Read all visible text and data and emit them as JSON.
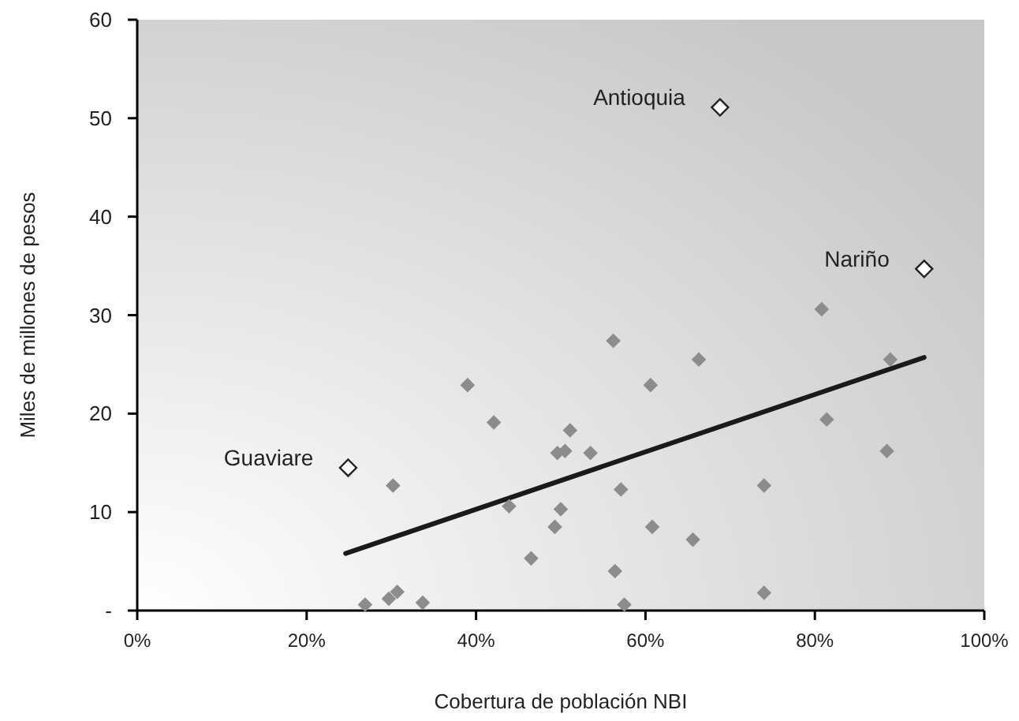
{
  "chart_data": {
    "type": "scatter",
    "xlabel": "Cobertura de población NBI",
    "ylabel": "Miles de millones de pesos",
    "xlim": [
      0,
      100
    ],
    "xticks": [
      {
        "value": 0,
        "label": "0%"
      },
      {
        "value": 20,
        "label": "20%"
      },
      {
        "value": 40,
        "label": "40%"
      },
      {
        "value": 60,
        "label": "60%"
      },
      {
        "value": 80,
        "label": "80%"
      },
      {
        "value": 100,
        "label": "100%"
      }
    ],
    "ylim": [
      0,
      60
    ],
    "yticks": [
      {
        "value": 0,
        "label": "-"
      },
      10,
      20,
      30,
      40,
      50,
      60
    ],
    "series": [
      {
        "color": "#8c8c8c",
        "marker": "diamond",
        "x": [
          39.0,
          42.1,
          30.2,
          43.9,
          46.5,
          26.9,
          29.7,
          30.7,
          33.7,
          56.2,
          66.3,
          60.6,
          51.1,
          49.6,
          50.5,
          53.5,
          57.1,
          50.0,
          49.3,
          60.8,
          65.6,
          56.4,
          57.5,
          74.0,
          74.0,
          80.8,
          81.4,
          88.9,
          88.5
        ],
        "values": [
          22.9,
          19.1,
          12.7,
          10.6,
          5.3,
          0.6,
          1.2,
          1.9,
          0.8,
          27.4,
          25.5,
          22.9,
          18.3,
          16.0,
          16.2,
          16.0,
          12.3,
          10.3,
          8.5,
          8.5,
          7.2,
          4.0,
          0.6,
          12.7,
          1.8,
          30.6,
          19.4,
          25.5,
          16.2
        ]
      },
      {
        "color": "#ffffff",
        "marker": "diamond",
        "x": [
          24.9,
          68.8,
          92.9
        ],
        "values": [
          14.5,
          51.1,
          34.7
        ]
      },
      {
        "type": "line",
        "color": "#1a1a1a",
        "x": [
          24.6,
          92.9
        ],
        "values": [
          5.8,
          25.7
        ],
        "marker": "none"
      }
    ],
    "annotations": [
      {
        "text": "Guaviare",
        "x": 24.9,
        "y": 14.5
      },
      {
        "text": "Antioquia",
        "x": 68.8,
        "y": 51.1
      },
      {
        "text": "Nariño",
        "x": 92.9,
        "y": 34.7
      }
    ]
  }
}
